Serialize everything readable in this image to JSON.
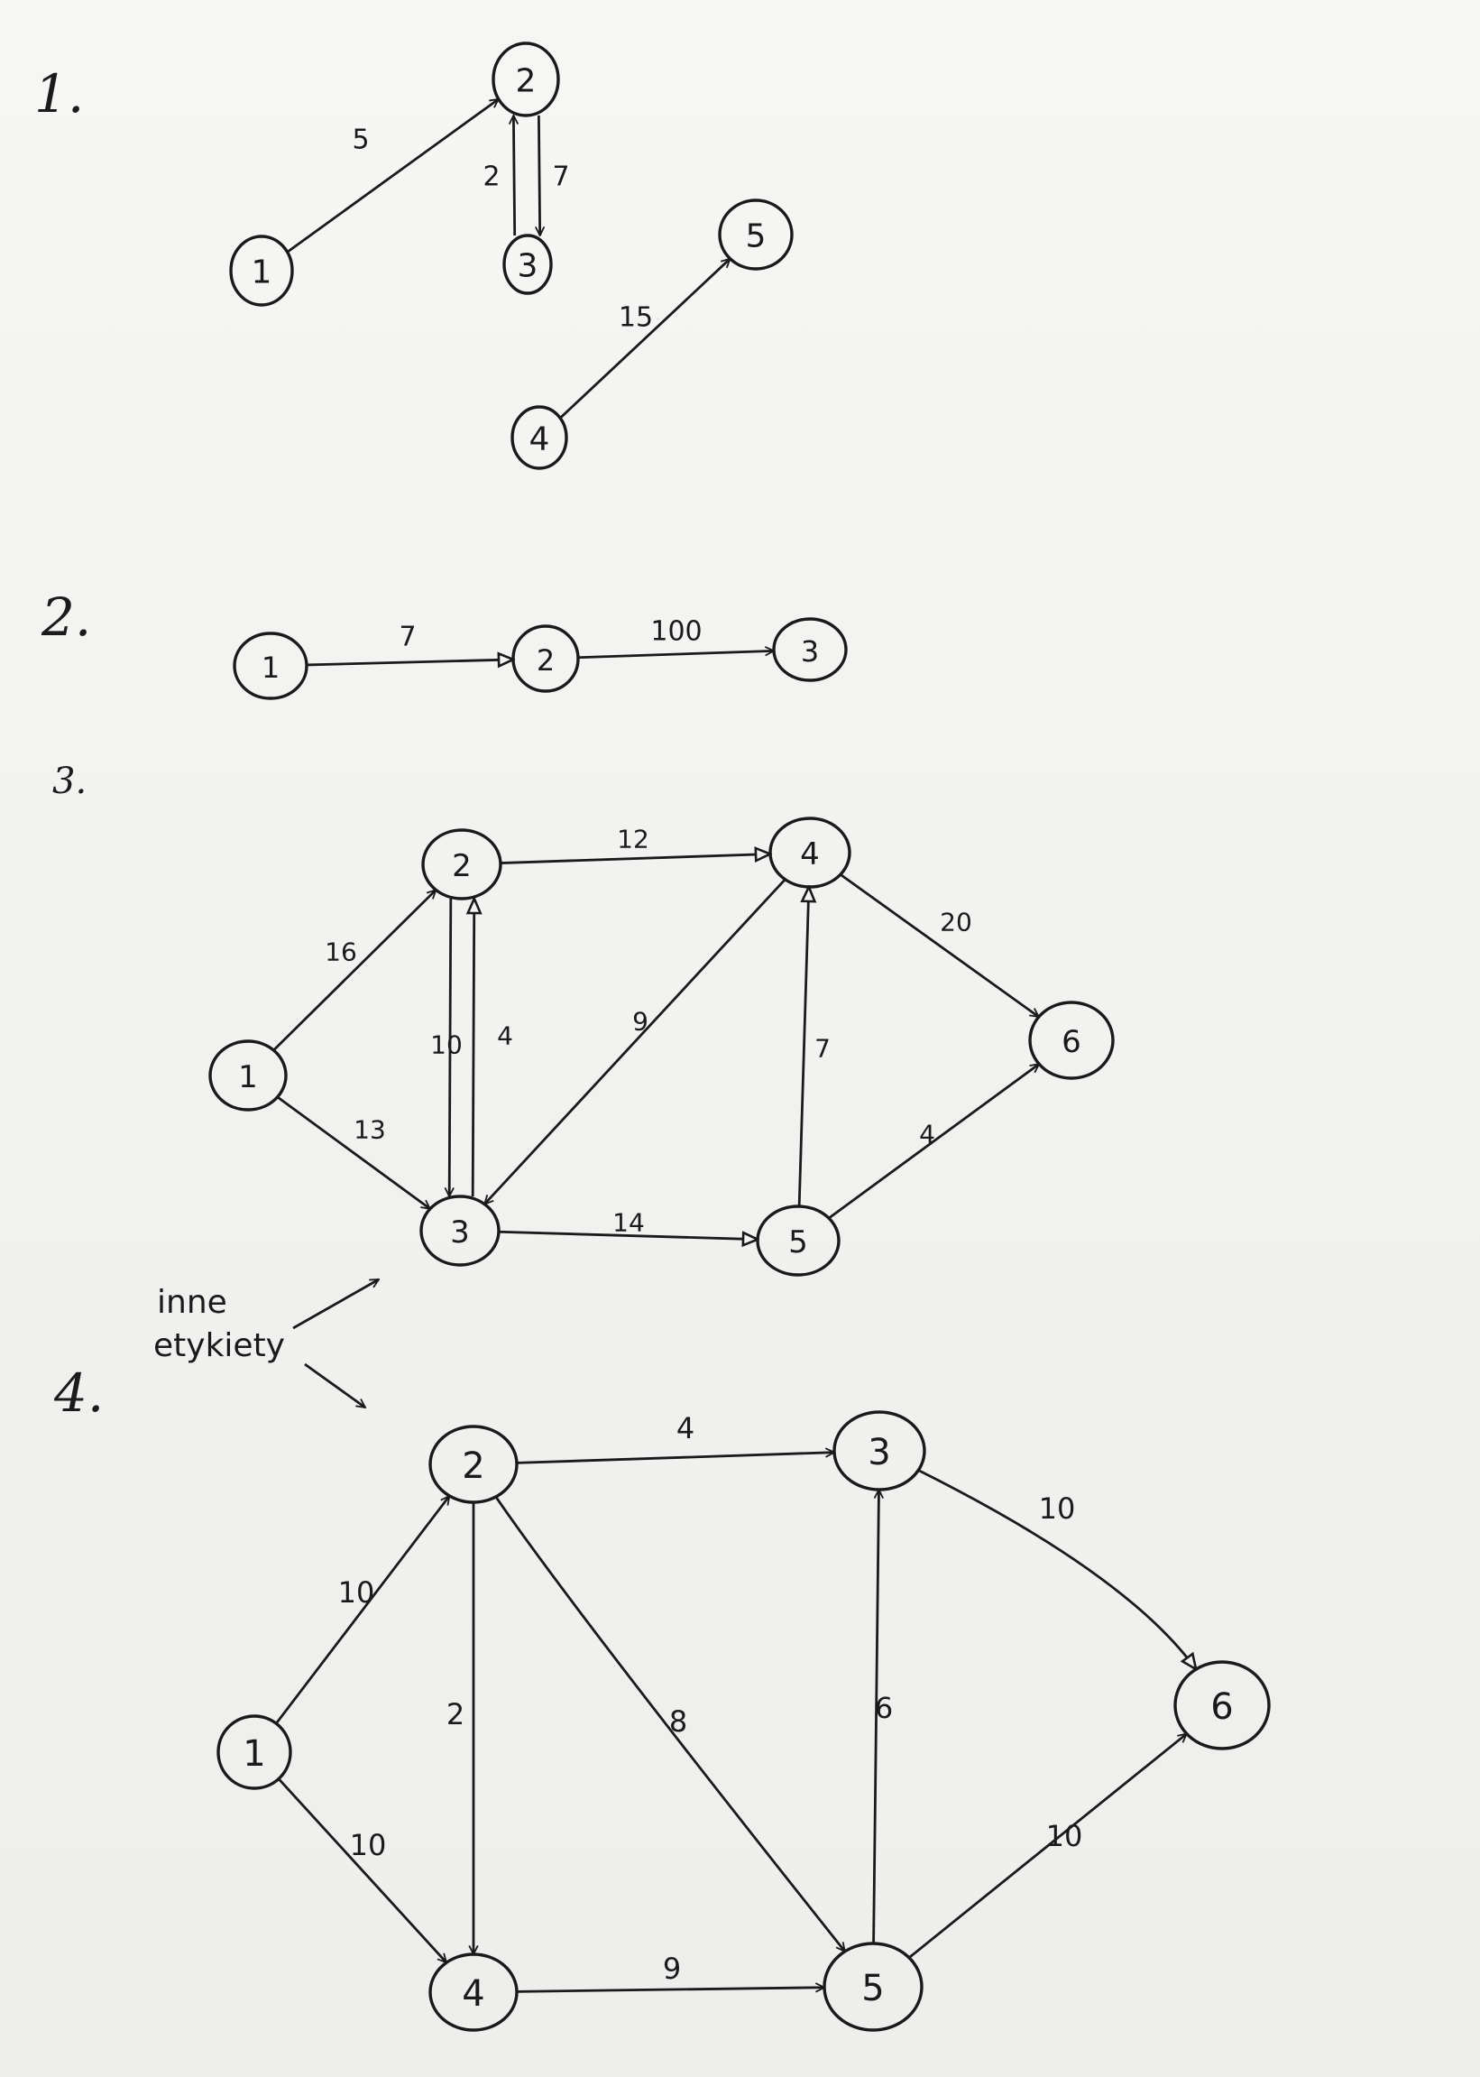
{
  "sections": [
    {
      "label": "1.",
      "nodes": [
        "1",
        "2",
        "3",
        "4",
        "5"
      ],
      "edges": [
        {
          "from": "1",
          "to": "2",
          "weight": "5"
        },
        {
          "from": "3",
          "to": "2",
          "weight": "2"
        },
        {
          "from": "2",
          "to": "3",
          "weight": "7"
        },
        {
          "from": "4",
          "to": "5",
          "weight": "15"
        }
      ]
    },
    {
      "label": "2.",
      "nodes": [
        "1",
        "2",
        "3"
      ],
      "edges": [
        {
          "from": "1",
          "to": "2",
          "weight": "7"
        },
        {
          "from": "2",
          "to": "3",
          "weight": "100"
        }
      ]
    },
    {
      "label": "3.",
      "nodes": [
        "1",
        "2",
        "3",
        "4",
        "5",
        "6"
      ],
      "edges": [
        {
          "from": "1",
          "to": "2",
          "weight": "16"
        },
        {
          "from": "1",
          "to": "3",
          "weight": "13"
        },
        {
          "from": "2",
          "to": "3",
          "weight": "10"
        },
        {
          "from": "3",
          "to": "2",
          "weight": "4"
        },
        {
          "from": "2",
          "to": "4",
          "weight": "12"
        },
        {
          "from": "4",
          "to": "3",
          "weight": "9"
        },
        {
          "from": "3",
          "to": "5",
          "weight": "14"
        },
        {
          "from": "5",
          "to": "4",
          "weight": "7"
        },
        {
          "from": "4",
          "to": "6",
          "weight": "20"
        },
        {
          "from": "5",
          "to": "6",
          "weight": "4"
        }
      ]
    },
    {
      "label": "4.",
      "nodes": [
        "1",
        "2",
        "3",
        "4",
        "5",
        "6"
      ],
      "edges": [
        {
          "from": "1",
          "to": "2",
          "weight": "10"
        },
        {
          "from": "1",
          "to": "4",
          "weight": "10"
        },
        {
          "from": "2",
          "to": "3",
          "weight": "4"
        },
        {
          "from": "2",
          "to": "4",
          "weight": "2"
        },
        {
          "from": "2",
          "to": "5",
          "weight": "8"
        },
        {
          "from": "4",
          "to": "5",
          "weight": "9"
        },
        {
          "from": "5",
          "to": "3",
          "weight": "6"
        },
        {
          "from": "3",
          "to": "6",
          "weight": "10"
        },
        {
          "from": "5",
          "to": "6",
          "weight": "10"
        }
      ]
    }
  ],
  "annotation": {
    "line1": "inne",
    "line2": "etykiety"
  }
}
